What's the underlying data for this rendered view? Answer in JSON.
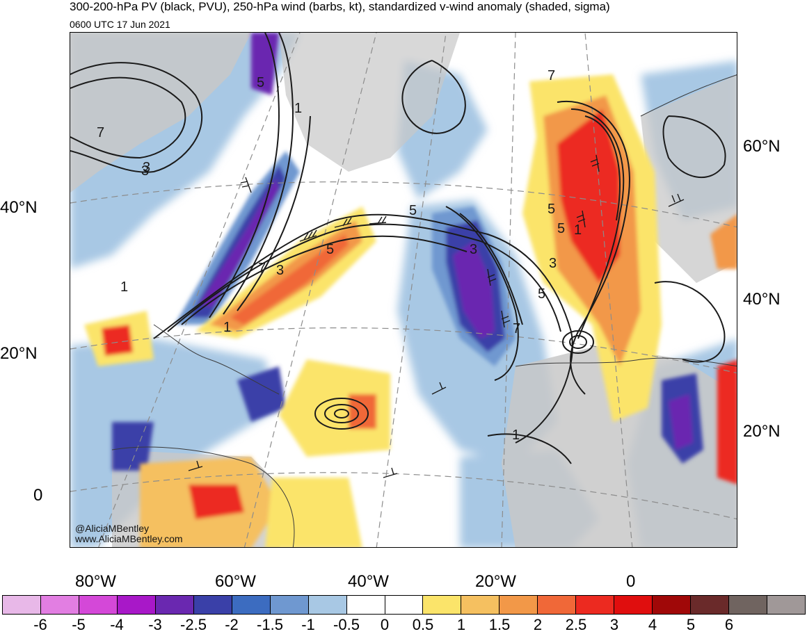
{
  "title": {
    "line1": "300-200-hPa PV (black, PVU), 250-hPa wind (barbs, kt), standardized v-wind anomaly (shaded, sigma)",
    "line2": "0600 UTC 17 Jun 2021"
  },
  "latitude_labels_left": [
    "40°N",
    "20°N",
    "0"
  ],
  "latitude_labels_right": [
    "60°N",
    "40°N",
    "20°N"
  ],
  "longitude_labels": [
    "80°W",
    "60°W",
    "40°W",
    "20°W",
    "0"
  ],
  "credit": {
    "handle": "@AliciaMBentley",
    "website": "www.AliciaMBentley.com"
  },
  "contour_labels": [
    "5",
    "7",
    "1",
    "3",
    "5",
    "7",
    "5",
    "3",
    "1",
    "5",
    "7",
    "3",
    "5",
    "3",
    "1",
    "1",
    "3",
    "5",
    "7",
    "1"
  ],
  "colorbar": {
    "levels": [
      "-6",
      "-5",
      "-4",
      "-3",
      "-2.5",
      "-2",
      "-1.5",
      "-1",
      "-0.5",
      "0",
      "0.5",
      "1",
      "1.5",
      "2",
      "2.5",
      "3",
      "4",
      "5",
      "6"
    ],
    "colors": [
      "#e8b8e8",
      "#e27ee2",
      "#d448d8",
      "#a818c8",
      "#6a28b0",
      "#3a40a8",
      "#3c6cc0",
      "#6f98d0",
      "#a8c8e4",
      "#ffffff",
      "#ffffff",
      "#fbe46a",
      "#f5c060",
      "#f29848",
      "#f06838",
      "#ec2a20",
      "#e00e0e",
      "#a00808",
      "#6a2a2a",
      "#706460",
      "#a09898"
    ]
  },
  "map_colors": {
    "land_gray": "#c8c8c8",
    "contour": "#1a1a1a",
    "graticule": "#8c8c8c"
  }
}
